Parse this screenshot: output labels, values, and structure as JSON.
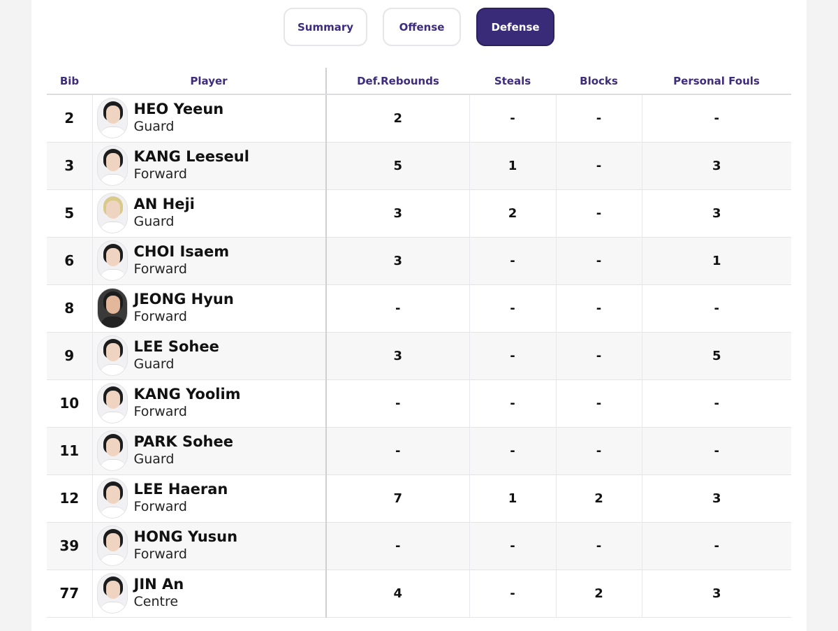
{
  "tabs": [
    {
      "label": "Summary",
      "active": false
    },
    {
      "label": "Offense",
      "active": false
    },
    {
      "label": "Defense",
      "active": true
    }
  ],
  "table": {
    "headers": [
      "Bib",
      "Player",
      "Def.Rebounds",
      "Steals",
      "Blocks",
      "Personal Fouls"
    ],
    "rows": [
      {
        "bib": "2",
        "name": "HEO Yeeun",
        "position": "Guard",
        "def_rebounds": "2",
        "steals": "-",
        "blocks": "-",
        "personal_fouls": "-"
      },
      {
        "bib": "3",
        "name": "KANG Leeseul",
        "position": "Forward",
        "def_rebounds": "5",
        "steals": "1",
        "blocks": "-",
        "personal_fouls": "3"
      },
      {
        "bib": "5",
        "name": "AN Heji",
        "position": "Guard",
        "def_rebounds": "3",
        "steals": "2",
        "blocks": "-",
        "personal_fouls": "3"
      },
      {
        "bib": "6",
        "name": "CHOI Isaem",
        "position": "Forward",
        "def_rebounds": "3",
        "steals": "-",
        "blocks": "-",
        "personal_fouls": "1"
      },
      {
        "bib": "8",
        "name": "JEONG Hyun",
        "position": "Forward",
        "def_rebounds": "-",
        "steals": "-",
        "blocks": "-",
        "personal_fouls": "-"
      },
      {
        "bib": "9",
        "name": "LEE Sohee",
        "position": "Guard",
        "def_rebounds": "3",
        "steals": "-",
        "blocks": "-",
        "personal_fouls": "5"
      },
      {
        "bib": "10",
        "name": "KANG Yoolim",
        "position": "Forward",
        "def_rebounds": "-",
        "steals": "-",
        "blocks": "-",
        "personal_fouls": "-"
      },
      {
        "bib": "11",
        "name": "PARK Sohee",
        "position": "Guard",
        "def_rebounds": "-",
        "steals": "-",
        "blocks": "-",
        "personal_fouls": "-"
      },
      {
        "bib": "12",
        "name": "LEE Haeran",
        "position": "Forward",
        "def_rebounds": "7",
        "steals": "1",
        "blocks": "2",
        "personal_fouls": "3"
      },
      {
        "bib": "39",
        "name": "HONG Yusun",
        "position": "Forward",
        "def_rebounds": "-",
        "steals": "-",
        "blocks": "-",
        "personal_fouls": "-"
      },
      {
        "bib": "77",
        "name": "JIN An",
        "position": "Centre",
        "def_rebounds": "4",
        "steals": "-",
        "blocks": "2",
        "personal_fouls": "3"
      }
    ]
  },
  "colors": {
    "accent": "#3a2b79",
    "header_text": "#3d2c7d"
  }
}
